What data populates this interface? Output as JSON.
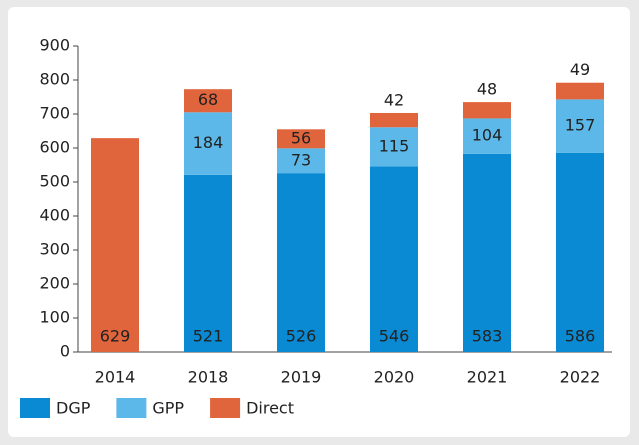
{
  "chart_data": {
    "type": "stacked_bar",
    "categories": [
      "2014",
      "2018",
      "2019",
      "2020",
      "2021",
      "2022"
    ],
    "series": [
      {
        "name": "DGP",
        "color": "#0a8ad2",
        "values": [
          null,
          521,
          526,
          546,
          583,
          586
        ]
      },
      {
        "name": "GPP",
        "color": "#5cb8e8",
        "values": [
          null,
          184,
          73,
          115,
          104,
          157
        ]
      },
      {
        "name": "Direct",
        "color": "#e0643c",
        "values": [
          629,
          68,
          56,
          42,
          48,
          49
        ]
      }
    ],
    "ylim": [
      0,
      900
    ],
    "yticks": [
      0,
      100,
      200,
      300,
      400,
      500,
      600,
      700,
      800,
      900
    ],
    "grid": false
  }
}
